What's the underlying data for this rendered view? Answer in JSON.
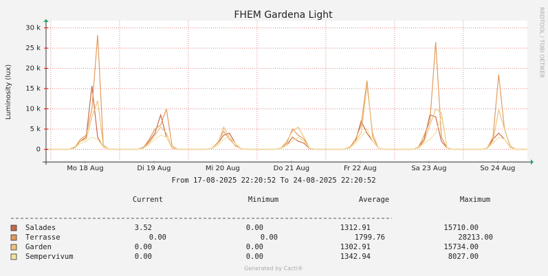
{
  "chart_data": {
    "type": "line",
    "title": "FHEM Gardena Light",
    "subtitle": "From 17-08-2025 22:20:52 To 24-08-2025 22:20:52",
    "y_label": "Luminosity (lux)",
    "side_text": "RRDTOOL / TOBI OETIKER",
    "footer": "Generated by Cacti®",
    "grid": true,
    "xlim": [
      0,
      168
    ],
    "xticks": [
      {
        "value": 13.65,
        "label": "Mo 18 Aug"
      },
      {
        "value": 37.65,
        "label": "Di 19 Aug"
      },
      {
        "value": 61.65,
        "label": "Mi 20 Aug"
      },
      {
        "value": 85.65,
        "label": "Do 21 Aug"
      },
      {
        "value": 109.65,
        "label": "Fr 22 Aug"
      },
      {
        "value": 133.65,
        "label": "Sa 23 Aug"
      },
      {
        "value": 157.65,
        "label": "So 24 Aug"
      }
    ],
    "ylim": [
      -2800,
      31800
    ],
    "yticks": [
      {
        "value": 0,
        "label": "0"
      },
      {
        "value": 5000,
        "label": "5 k"
      },
      {
        "value": 10000,
        "label": "10 k"
      },
      {
        "value": 15000,
        "label": "15 k"
      },
      {
        "value": 20000,
        "label": "20 k"
      },
      {
        "value": 25000,
        "label": "25 k"
      },
      {
        "value": 30000,
        "label": "30 k"
      }
    ],
    "x": [
      0,
      2,
      4,
      6,
      8,
      10,
      12,
      14,
      16,
      18,
      20,
      22,
      24,
      26,
      28,
      30,
      32,
      34,
      36,
      38,
      40,
      42,
      44,
      46,
      48,
      50,
      52,
      54,
      56,
      58,
      60,
      62,
      64,
      66,
      68,
      70,
      72,
      74,
      76,
      78,
      80,
      82,
      84,
      86,
      88,
      90,
      92,
      94,
      96,
      98,
      100,
      102,
      104,
      106,
      108,
      110,
      112,
      114,
      116,
      118,
      120,
      122,
      124,
      126,
      128,
      130,
      132,
      134,
      136,
      138,
      140,
      142,
      144,
      146,
      148,
      150,
      152,
      154,
      156,
      158,
      160,
      162,
      164,
      166,
      168
    ],
    "series": [
      {
        "name": "Salades",
        "color": "#c8684a",
        "values": [
          0,
          0,
          0,
          0,
          0,
          500,
          2000,
          3000,
          15710,
          3000,
          500,
          0,
          0,
          0,
          0,
          0,
          0,
          500,
          2000,
          4000,
          8500,
          3000,
          300,
          0,
          0,
          0,
          0,
          0,
          0,
          300,
          1500,
          3500,
          4000,
          1500,
          200,
          0,
          0,
          0,
          0,
          0,
          0,
          300,
          1000,
          3000,
          2000,
          1500,
          200,
          0,
          0,
          0,
          0,
          0,
          0,
          500,
          2000,
          7000,
          4000,
          2000,
          300,
          0,
          0,
          0,
          0,
          0,
          0,
          400,
          2500,
          8500,
          8000,
          2000,
          300,
          0,
          0,
          0,
          0,
          0,
          0,
          300,
          2500,
          4000,
          2500,
          500,
          0,
          0,
          0
        ]
      },
      {
        "name": "Terrasse",
        "color": "#e49a5c",
        "values": [
          0,
          0,
          0,
          0,
          0,
          400,
          2500,
          3500,
          10000,
          28213,
          1000,
          0,
          0,
          0,
          0,
          0,
          0,
          400,
          2500,
          5000,
          6000,
          10000,
          800,
          0,
          0,
          0,
          0,
          0,
          0,
          300,
          1800,
          4500,
          2500,
          1000,
          200,
          0,
          0,
          0,
          0,
          0,
          0,
          300,
          1500,
          5000,
          3500,
          2500,
          200,
          0,
          0,
          0,
          0,
          0,
          0,
          500,
          2500,
          6000,
          17000,
          3000,
          300,
          0,
          0,
          0,
          0,
          0,
          0,
          500,
          3500,
          7000,
          26500,
          3000,
          300,
          0,
          0,
          0,
          0,
          0,
          0,
          300,
          3000,
          18500,
          5000,
          800,
          0,
          0,
          0
        ]
      },
      {
        "name": "Garden",
        "color": "#eec27a",
        "values": [
          0,
          0,
          0,
          0,
          0,
          300,
          2000,
          2500,
          8000,
          12000,
          800,
          0,
          0,
          0,
          0,
          0,
          0,
          300,
          1500,
          3500,
          5500,
          4000,
          400,
          0,
          0,
          0,
          0,
          0,
          0,
          300,
          1500,
          5500,
          3000,
          800,
          200,
          0,
          0,
          0,
          0,
          0,
          0,
          300,
          2000,
          4500,
          5500,
          3000,
          300,
          0,
          0,
          0,
          0,
          0,
          0,
          400,
          2000,
          4000,
          15734,
          4000,
          300,
          0,
          0,
          0,
          0,
          0,
          0,
          400,
          2000,
          6000,
          10000,
          9000,
          400,
          0,
          0,
          0,
          0,
          0,
          0,
          300,
          2000,
          9800,
          5000,
          600,
          0,
          0,
          0
        ]
      },
      {
        "name": "Sempervivum",
        "color": "#f4e2a0",
        "values": [
          0,
          0,
          0,
          0,
          0,
          300,
          1500,
          2000,
          3000,
          2500,
          500,
          0,
          0,
          0,
          0,
          0,
          0,
          300,
          1200,
          2500,
          3500,
          3000,
          400,
          0,
          0,
          0,
          0,
          0,
          0,
          200,
          1000,
          2500,
          3000,
          1500,
          200,
          0,
          0,
          0,
          0,
          0,
          0,
          200,
          1000,
          2000,
          3000,
          2000,
          300,
          0,
          0,
          0,
          0,
          0,
          0,
          300,
          1500,
          3000,
          5000,
          2000,
          300,
          0,
          0,
          0,
          0,
          0,
          0,
          300,
          1500,
          2500,
          4000,
          8027,
          300,
          0,
          0,
          0,
          0,
          0,
          0,
          200,
          1500,
          3000,
          2500,
          400,
          0,
          0,
          0
        ]
      }
    ],
    "legend_table": {
      "columns": [
        "Current",
        "Minimum",
        "Average",
        "Maximum"
      ],
      "rows": [
        [
          "3.52",
          "0.00",
          "1312.91",
          "15710.00"
        ],
        [
          "0.00",
          "0.00",
          "1799.76",
          "28213.00"
        ],
        [
          "0.00",
          "0.00",
          "1302.91",
          "15734.00"
        ],
        [
          "0.00",
          "0.00",
          "1342.94",
          "8027.00"
        ]
      ]
    }
  }
}
